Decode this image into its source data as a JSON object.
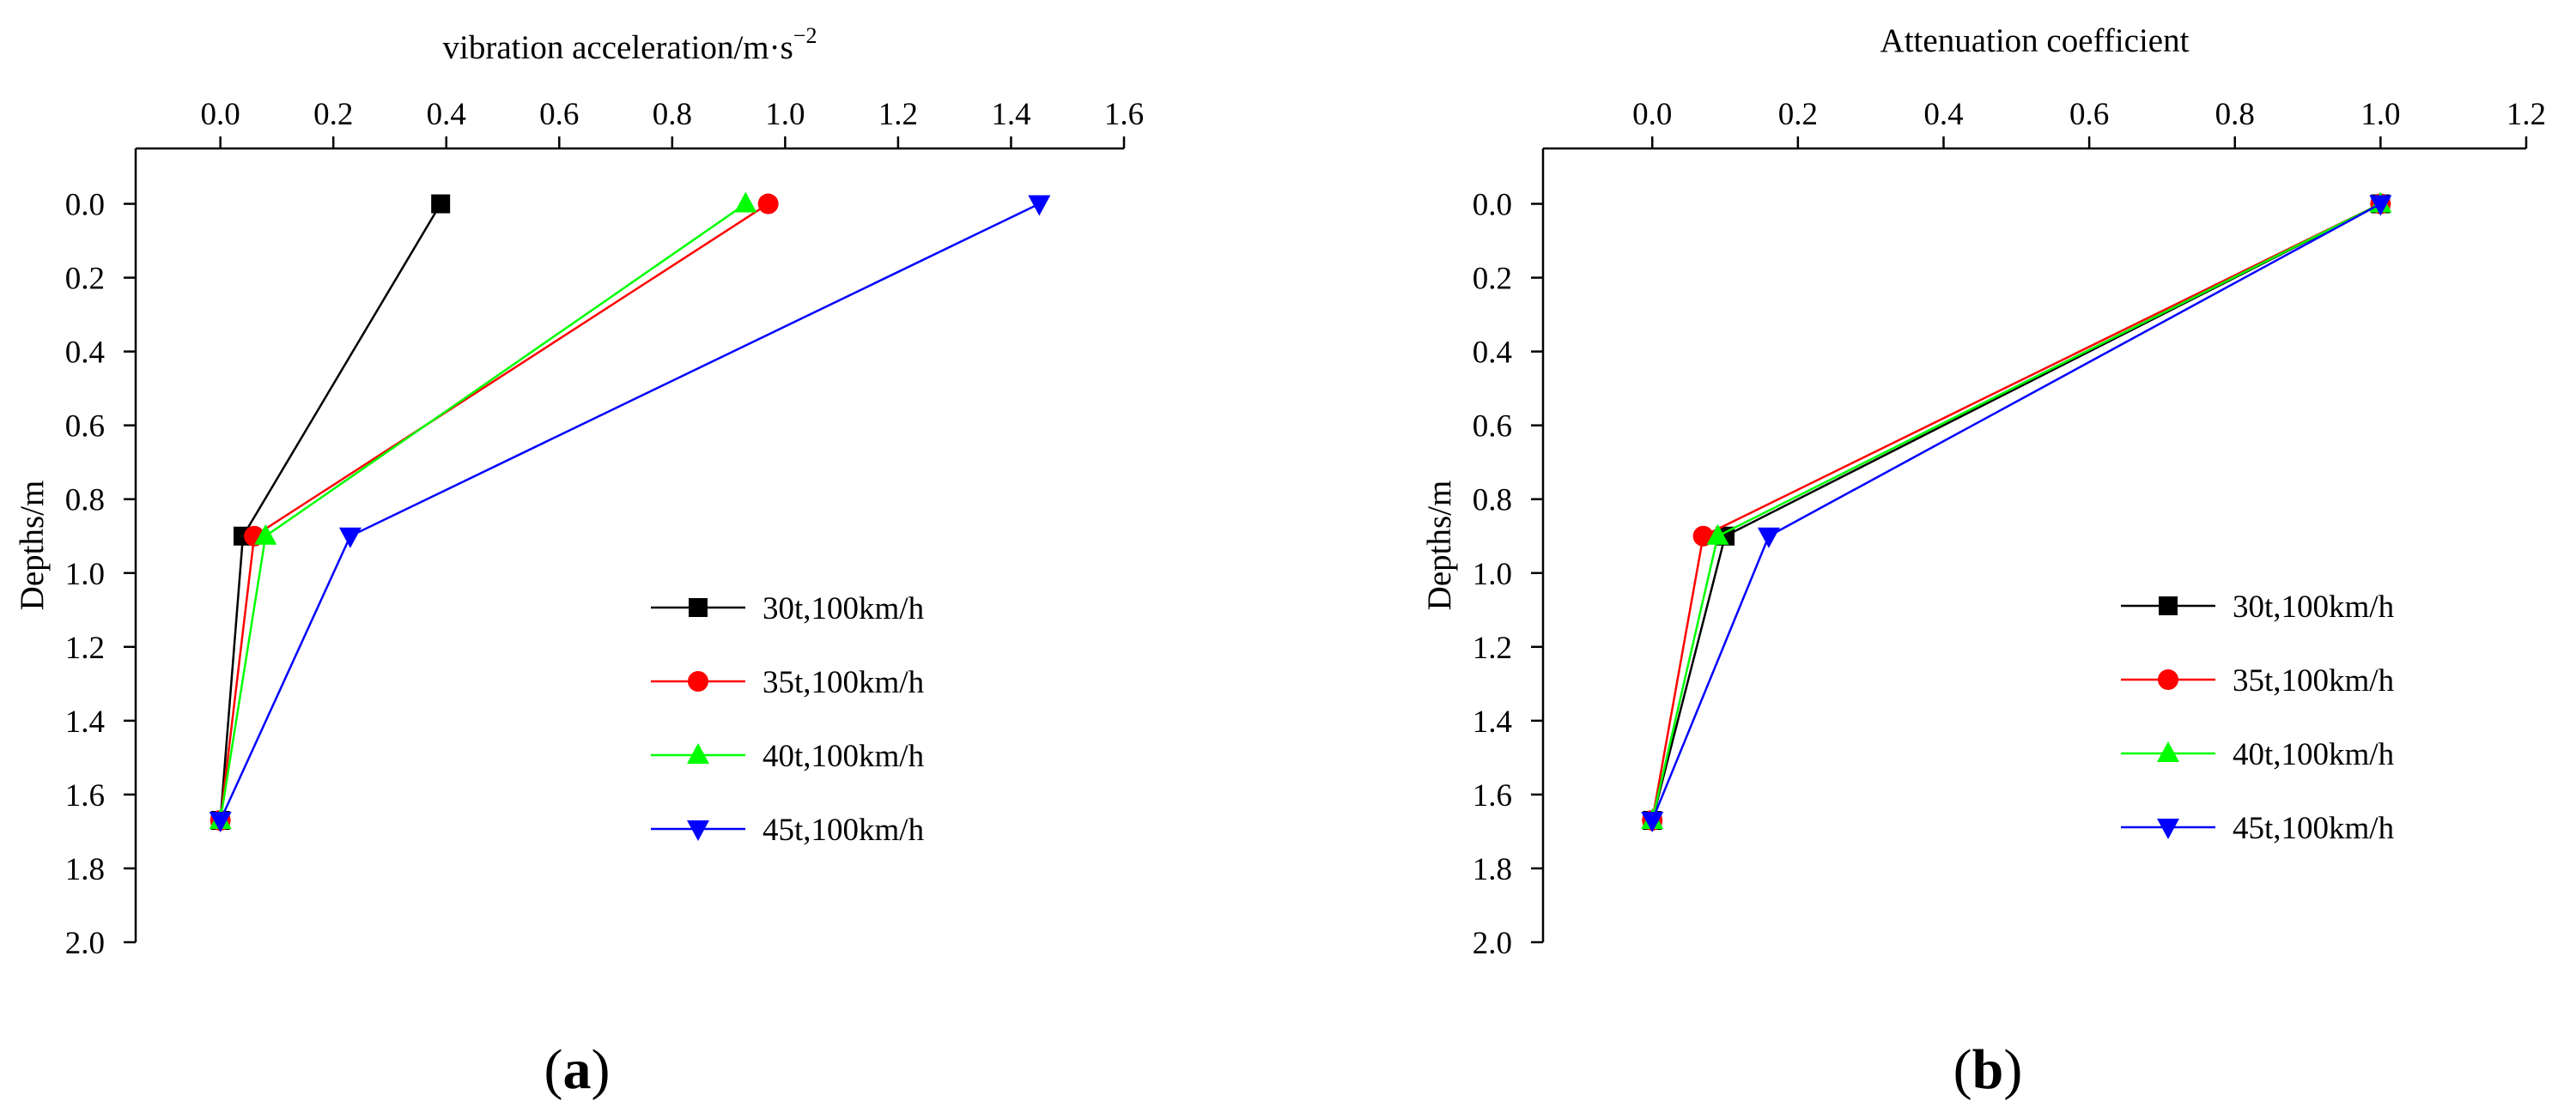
{
  "chart_data": [
    {
      "type": "line",
      "panel_label": "a",
      "xlabel": "vibration acceleration/m·s",
      "xlabel_superscript": "−2",
      "ylabel": "Depths/m",
      "x_axis_position": "top",
      "y_axis_inverted": true,
      "xlim": [
        -0.15,
        1.6
      ],
      "ylim": [
        -0.15,
        2.0
      ],
      "xticks": [
        "0.0",
        "0.2",
        "0.4",
        "0.6",
        "0.8",
        "1.0",
        "1.2",
        "1.4",
        "1.6"
      ],
      "yticks": [
        "0.0",
        "0.2",
        "0.4",
        "0.6",
        "0.8",
        "1.0",
        "1.2",
        "1.4",
        "1.6",
        "1.8",
        "2.0"
      ],
      "legend_position": "center-right",
      "series": [
        {
          "name": "30t,100km/h",
          "color": "#000000",
          "marker": "square",
          "x": [
            0.39,
            0.04,
            0.0
          ],
          "y": [
            0.0,
            0.9,
            1.67
          ]
        },
        {
          "name": "35t,100km/h",
          "color": "#ff0000",
          "marker": "circle",
          "x": [
            0.97,
            0.06,
            0.0
          ],
          "y": [
            0.0,
            0.9,
            1.67
          ]
        },
        {
          "name": "40t,100km/h",
          "color": "#00ff00",
          "marker": "triangle-up",
          "x": [
            0.93,
            0.08,
            0.0
          ],
          "y": [
            0.0,
            0.9,
            1.67
          ]
        },
        {
          "name": "45t,100km/h",
          "color": "#0000ff",
          "marker": "triangle-down",
          "x": [
            1.45,
            0.23,
            0.0
          ],
          "y": [
            0.0,
            0.9,
            1.67
          ]
        }
      ]
    },
    {
      "type": "line",
      "panel_label": "b",
      "xlabel": "Attenuation coefficient",
      "ylabel": "Depths/m",
      "x_axis_position": "top",
      "y_axis_inverted": true,
      "xlim": [
        -0.15,
        1.2
      ],
      "ylim": [
        -0.15,
        2.0
      ],
      "xticks": [
        "0.0",
        "0.2",
        "0.4",
        "0.6",
        "0.8",
        "1.0",
        "1.2"
      ],
      "yticks": [
        "0.0",
        "0.2",
        "0.4",
        "0.6",
        "0.8",
        "1.0",
        "1.2",
        "1.4",
        "1.6",
        "1.8",
        "2.0"
      ],
      "legend_position": "center-right",
      "series": [
        {
          "name": "30t,100km/h",
          "color": "#000000",
          "marker": "square",
          "x": [
            1.0,
            0.1,
            0.0
          ],
          "y": [
            0.0,
            0.9,
            1.67
          ]
        },
        {
          "name": "35t,100km/h",
          "color": "#ff0000",
          "marker": "circle",
          "x": [
            1.0,
            0.07,
            0.0
          ],
          "y": [
            0.0,
            0.9,
            1.67
          ]
        },
        {
          "name": "40t,100km/h",
          "color": "#00ff00",
          "marker": "triangle-up",
          "x": [
            1.0,
            0.09,
            0.0
          ],
          "y": [
            0.0,
            0.9,
            1.67
          ]
        },
        {
          "name": "45t,100km/h",
          "color": "#0000ff",
          "marker": "triangle-down",
          "x": [
            1.0,
            0.16,
            0.0
          ],
          "y": [
            0.0,
            0.9,
            1.67
          ]
        }
      ]
    }
  ]
}
